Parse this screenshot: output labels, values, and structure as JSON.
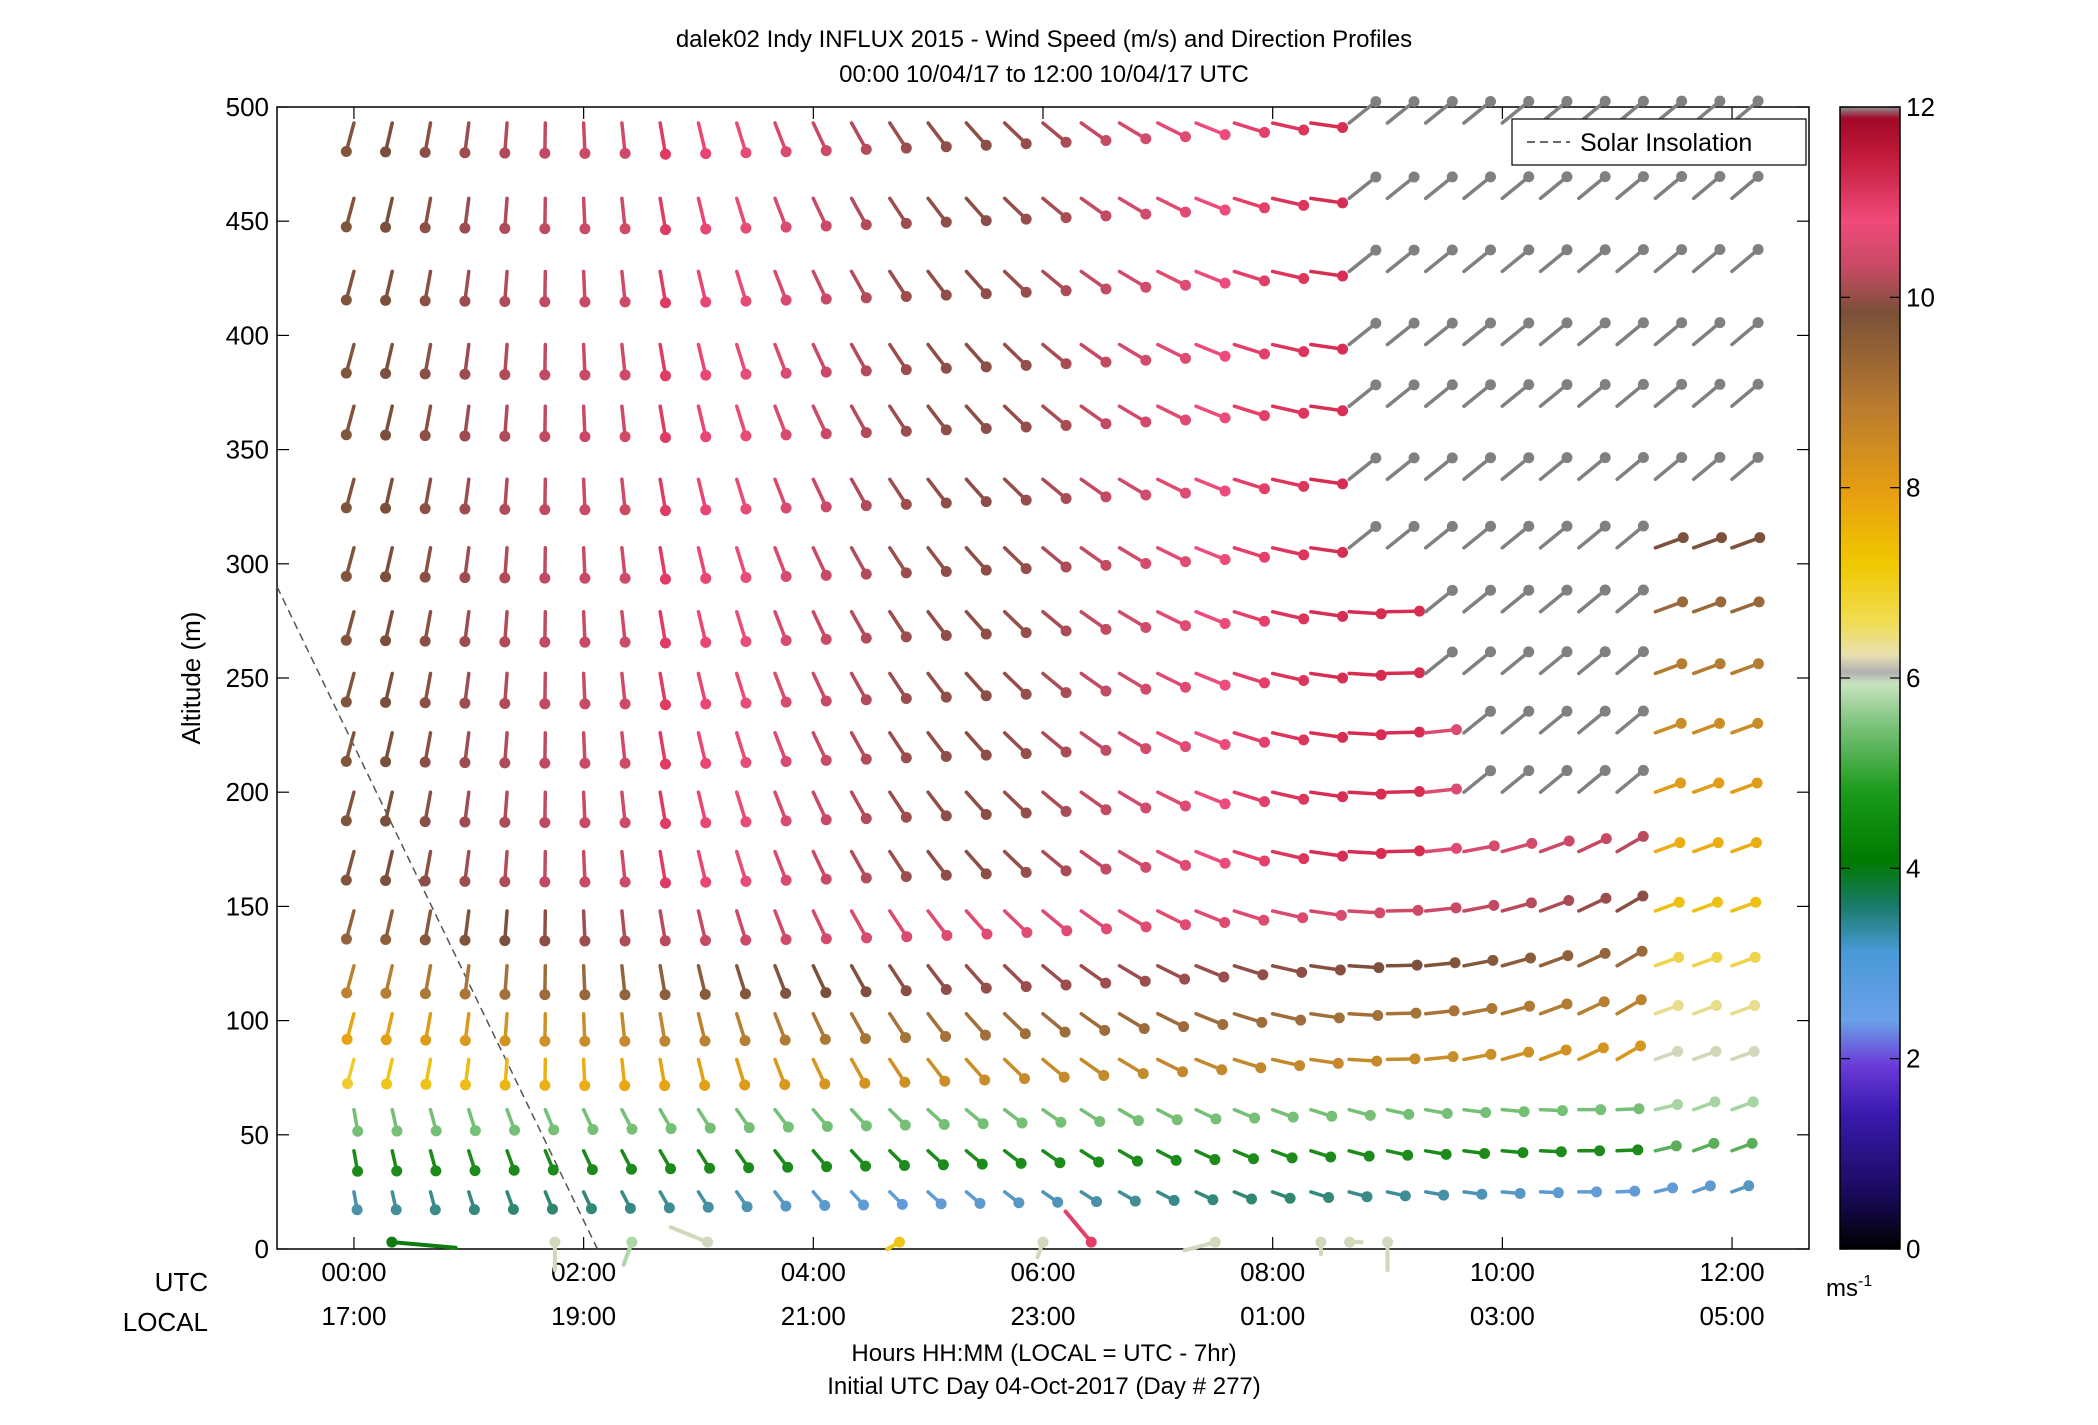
{
  "chart_data": {
    "type": "quiver",
    "title_line1": "dalek02 Indy INFLUX 2015 - Wind Speed (m/s) and Direction Profiles",
    "title_line2": "00:00 10/04/17 to 12:00 10/04/17  UTC",
    "ylabel": "Altitude (m)",
    "xlabel_line1": "Hours HH:MM  (LOCAL = UTC - 7hr)",
    "xlabel_line2": "Initial UTC Day 04-Oct-2017 (Day # 277)",
    "utc_row_label": "UTC",
    "local_row_label": "LOCAL",
    "xlim_hours": [
      -0.67,
      12.67
    ],
    "ylim": [
      0,
      500
    ],
    "utc_ticks": [
      {
        "hour": 0,
        "label": "00:00"
      },
      {
        "hour": 2,
        "label": "02:00"
      },
      {
        "hour": 4,
        "label": "04:00"
      },
      {
        "hour": 6,
        "label": "06:00"
      },
      {
        "hour": 8,
        "label": "08:00"
      },
      {
        "hour": 10,
        "label": "10:00"
      },
      {
        "hour": 12,
        "label": "12:00"
      }
    ],
    "local_ticks": [
      "17:00",
      "19:00",
      "21:00",
      "23:00",
      "01:00",
      "03:00",
      "05:00"
    ],
    "y_ticks": [
      0,
      50,
      100,
      150,
      200,
      250,
      300,
      350,
      400,
      450,
      500
    ],
    "legend": {
      "label": "Solar Insolation",
      "position": "top-right",
      "style": "dashed"
    },
    "solar_insolation": [
      [
        -0.67,
        290
      ],
      [
        2.12,
        0
      ]
    ],
    "colorbar": {
      "ticks": [
        0,
        2,
        4,
        6,
        8,
        10,
        12
      ],
      "unit_label": "ms",
      "unit_exponent": "-1",
      "range": [
        0,
        12
      ]
    },
    "x_hours_step": 0.3333,
    "altitudes": [
      25,
      43,
      61,
      83,
      103,
      124,
      148,
      174,
      200,
      226,
      252,
      279,
      307,
      337,
      369,
      396,
      428,
      460,
      493
    ],
    "surface_vectors": [
      {
        "hour": 0.33,
        "speed": 3.5,
        "dir_deg": 95,
        "len": 1.6
      },
      {
        "hour": 1.75,
        "speed": 6.0,
        "dir_deg": 180,
        "len": 0.7
      },
      {
        "hour": 2.42,
        "speed": 5.5,
        "dir_deg": 200,
        "len": 0.6
      },
      {
        "hour": 3.08,
        "speed": 6.0,
        "dir_deg": 292,
        "len": 1.0
      },
      {
        "hour": 4.75,
        "speed": 7.0,
        "dir_deg": 240,
        "len": 0.35
      },
      {
        "hour": 6.0,
        "speed": 6.0,
        "dir_deg": 200,
        "len": 0.4
      },
      {
        "hour": 6.42,
        "speed": 11.0,
        "dir_deg": 320,
        "len": 1.0
      },
      {
        "hour": 7.5,
        "speed": 6.0,
        "dir_deg": 255,
        "len": 0.8
      },
      {
        "hour": 8.42,
        "speed": 6.0,
        "dir_deg": 180,
        "len": 0.3
      },
      {
        "hour": 8.67,
        "speed": 6.0,
        "dir_deg": 90,
        "len": 0.3
      },
      {
        "hour": 9.0,
        "speed": 6.0,
        "dir_deg": 180,
        "len": 0.7
      }
    ],
    "colors": {
      "grey": "#808080",
      "gold": "#efc016",
      "orange": "#d2901e",
      "brown": "#8a5a3c",
      "pink": "#e8466e",
      "crimson": "#c0193a",
      "green": "#1a8a1a",
      "light_green": "#7ec37e",
      "blue": "#6aa0dc",
      "teal": "#3a8a8a"
    }
  }
}
